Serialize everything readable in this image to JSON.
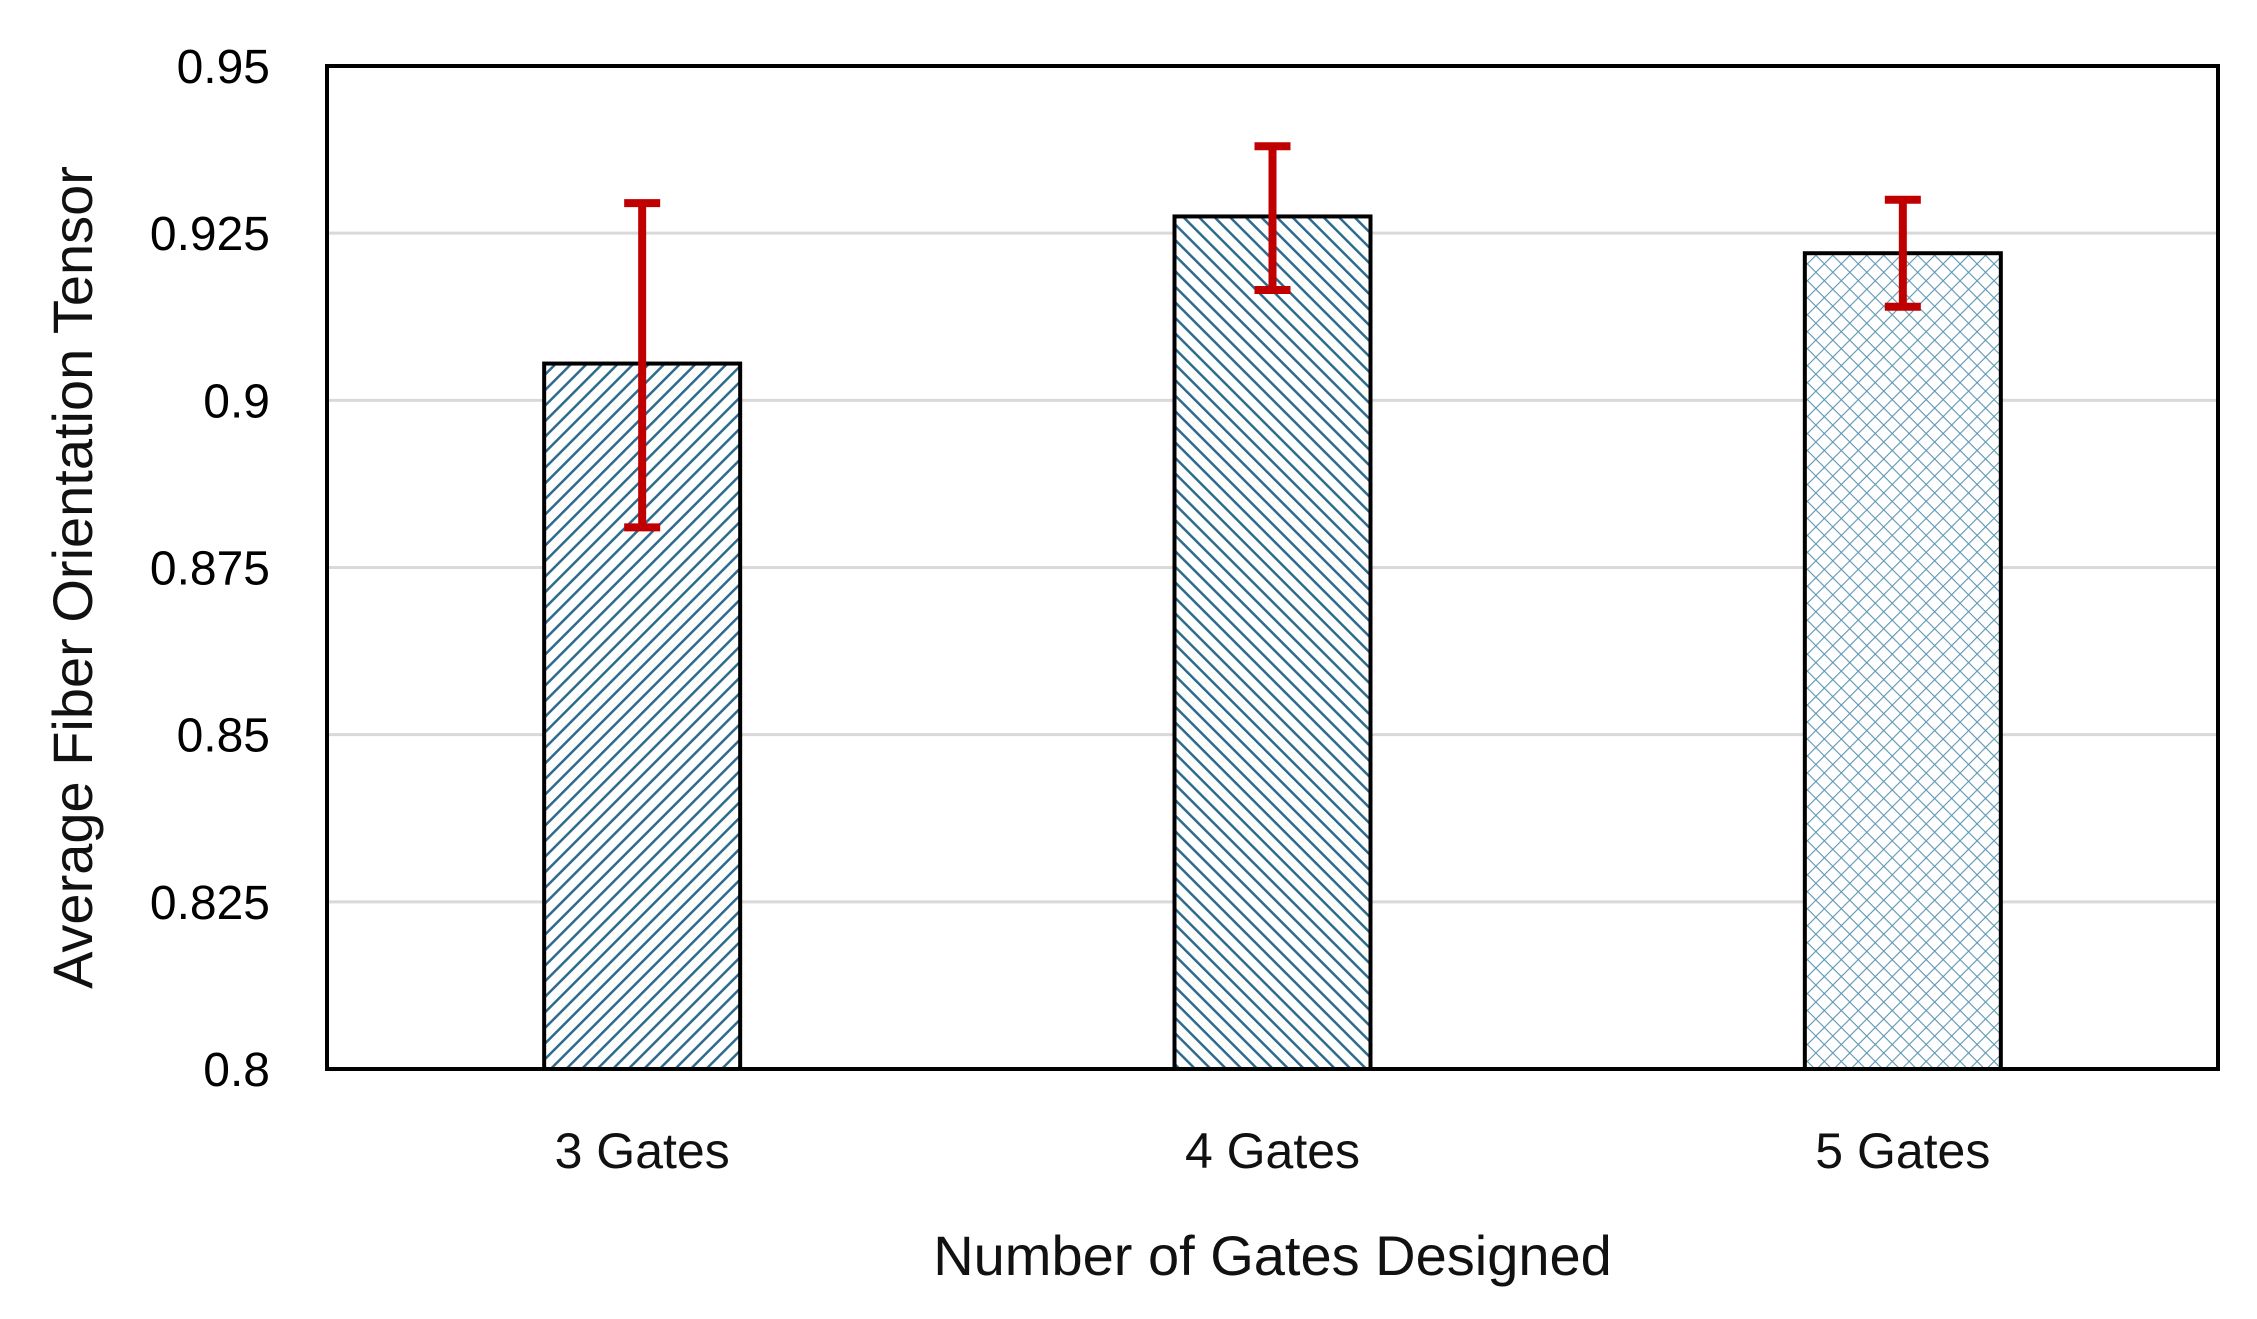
{
  "chart_data": {
    "type": "bar",
    "title": "",
    "xlabel": "Number of Gates Designed",
    "ylabel": "Average Fiber Orientation Tensor",
    "categories": [
      "3 Gates",
      "4 Gates",
      "5 Gates"
    ],
    "values": [
      0.9055,
      0.9275,
      0.922
    ],
    "error_low": [
      0.881,
      0.9165,
      0.914
    ],
    "error_high": [
      0.9295,
      0.938,
      0.93
    ],
    "ylim": [
      0.8,
      0.95
    ],
    "yticks": [
      "0.8",
      "0.825",
      "0.85",
      "0.875",
      "0.9",
      "0.925",
      "0.95"
    ],
    "grid": true,
    "legend": "none",
    "bar_fills": [
      "diagonal-hatch-up",
      "diagonal-hatch-down",
      "crosshatch"
    ],
    "colors": {
      "bar_hatch": "#2f6b8f",
      "bar_hatch_light": "#5d97b3",
      "error_bar": "#c00000",
      "gridline": "#d9d9d9",
      "frame": "#000000"
    }
  }
}
